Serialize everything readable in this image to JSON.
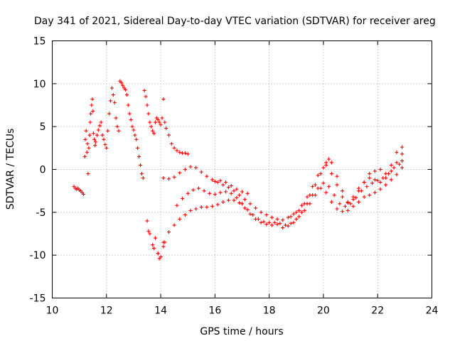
{
  "chart_data": {
    "type": "scatter",
    "title": "Day 341 of 2021, Sidereal Day-to-day VTEC variation (SDTVAR) for receiver areg",
    "xlabel": "GPS time / hours",
    "ylabel": "SDTVAR / TECUs",
    "xlim": [
      10,
      24
    ],
    "ylim": [
      -15,
      15
    ],
    "x_ticks": [
      "10",
      "12",
      "14",
      "16",
      "18",
      "20",
      "22",
      "24"
    ],
    "y_ticks": [
      "15",
      "10",
      "5",
      "0",
      "-5",
      "-10",
      "-15"
    ],
    "grid": true,
    "marker": "plus",
    "color": "#ff0000",
    "series": [
      {
        "name": "early scattered arcs",
        "points": [
          [
            10.8,
            -2.0
          ],
          [
            10.85,
            -2.2
          ],
          [
            10.9,
            -2.3
          ],
          [
            10.95,
            -2.2
          ],
          [
            11.0,
            -2.4
          ],
          [
            11.05,
            -2.5
          ],
          [
            11.1,
            -2.7
          ],
          [
            11.15,
            -2.9
          ],
          [
            11.2,
            1.5
          ],
          [
            11.22,
            3.5
          ],
          [
            11.25,
            4.5
          ],
          [
            11.28,
            2.0
          ],
          [
            11.3,
            3.0
          ],
          [
            11.32,
            -0.5
          ],
          [
            11.35,
            2.5
          ],
          [
            11.38,
            4.0
          ],
          [
            11.4,
            5.5
          ],
          [
            11.42,
            6.5
          ],
          [
            11.45,
            7.5
          ],
          [
            11.48,
            8.2
          ],
          [
            11.5,
            6.8
          ],
          [
            11.52,
            4.2
          ],
          [
            11.55,
            3.5
          ],
          [
            11.58,
            2.8
          ],
          [
            11.6,
            3.2
          ],
          [
            11.65,
            4.0
          ],
          [
            11.7,
            4.6
          ],
          [
            11.75,
            5.1
          ],
          [
            11.8,
            5.5
          ],
          [
            11.85,
            4.0
          ],
          [
            11.9,
            3.5
          ],
          [
            11.95,
            2.9
          ],
          [
            12.0,
            2.5
          ],
          [
            12.05,
            4.5
          ],
          [
            12.1,
            6.5
          ],
          [
            12.15,
            8.0
          ],
          [
            12.2,
            9.5
          ],
          [
            12.25,
            8.7
          ],
          [
            12.3,
            7.8
          ],
          [
            12.35,
            6.0
          ],
          [
            12.4,
            5.0
          ],
          [
            12.45,
            4.5
          ],
          [
            12.5,
            10.3
          ],
          [
            12.55,
            10.1
          ],
          [
            12.6,
            9.8
          ],
          [
            12.65,
            9.5
          ],
          [
            12.7,
            9.3
          ],
          [
            12.75,
            8.7
          ],
          [
            12.8,
            7.5
          ],
          [
            12.85,
            6.5
          ],
          [
            12.9,
            5.8
          ],
          [
            12.95,
            5.0
          ],
          [
            13.0,
            4.6
          ],
          [
            13.05,
            4.0
          ],
          [
            13.1,
            3.5
          ],
          [
            13.15,
            2.5
          ],
          [
            13.2,
            1.5
          ],
          [
            13.25,
            0.5
          ],
          [
            13.3,
            -0.5
          ],
          [
            13.35,
            -1.0
          ]
        ]
      },
      {
        "name": "midday arcs",
        "points": [
          [
            13.4,
            9.2
          ],
          [
            13.45,
            8.5
          ],
          [
            13.5,
            7.5
          ],
          [
            13.55,
            6.5
          ],
          [
            13.6,
            5.5
          ],
          [
            13.65,
            5.0
          ],
          [
            13.7,
            4.5
          ],
          [
            13.75,
            4.2
          ],
          [
            13.8,
            5.5
          ],
          [
            13.85,
            6.0
          ],
          [
            13.9,
            5.8
          ],
          [
            13.95,
            5.5
          ],
          [
            14.0,
            5.2
          ],
          [
            14.05,
            6.0
          ],
          [
            14.1,
            8.2
          ],
          [
            14.15,
            5.5
          ],
          [
            14.2,
            4.8
          ],
          [
            14.3,
            4.0
          ],
          [
            14.4,
            3.0
          ],
          [
            14.5,
            2.5
          ],
          [
            14.6,
            2.2
          ],
          [
            14.7,
            2.0
          ],
          [
            14.8,
            1.9
          ],
          [
            14.9,
            1.9
          ],
          [
            15.0,
            1.8
          ],
          [
            13.5,
            -6.0
          ],
          [
            13.55,
            -7.2
          ],
          [
            13.6,
            -7.5
          ],
          [
            13.7,
            -8.8
          ],
          [
            13.75,
            -9.2
          ],
          [
            13.8,
            -8.0
          ],
          [
            13.9,
            -9.8
          ],
          [
            13.95,
            -10.4
          ],
          [
            14.0,
            -10.2
          ],
          [
            14.1,
            -9.0
          ],
          [
            14.15,
            -8.5
          ]
        ]
      },
      {
        "name": "track A",
        "points": [
          [
            14.1,
            -1.0
          ],
          [
            14.3,
            -1.1
          ],
          [
            14.5,
            -0.9
          ],
          [
            14.7,
            -0.4
          ],
          [
            14.9,
            0.0
          ],
          [
            15.1,
            0.3
          ],
          [
            15.3,
            0.2
          ],
          [
            15.5,
            -0.3
          ],
          [
            15.7,
            -0.8
          ],
          [
            15.9,
            -1.2
          ],
          [
            16.1,
            -1.5
          ],
          [
            16.3,
            -1.8
          ],
          [
            16.5,
            -2.1
          ],
          [
            16.7,
            -2.5
          ],
          [
            16.9,
            -3.0
          ],
          [
            17.1,
            -3.5
          ],
          [
            17.3,
            -4.0
          ],
          [
            17.5,
            -4.5
          ],
          [
            17.7,
            -5.0
          ],
          [
            17.9,
            -5.3
          ],
          [
            18.1,
            -5.6
          ],
          [
            18.3,
            -5.8
          ],
          [
            18.5,
            -5.9
          ],
          [
            18.7,
            -5.6
          ],
          [
            18.9,
            -5.2
          ],
          [
            19.1,
            -4.8
          ],
          [
            19.3,
            -4.0
          ],
          [
            19.5,
            -3.0
          ],
          [
            19.7,
            -1.8
          ],
          [
            19.9,
            -0.5
          ],
          [
            20.1,
            0.8
          ],
          [
            20.2,
            1.2
          ],
          [
            20.3,
            0.8
          ],
          [
            20.5,
            -0.8
          ],
          [
            20.7,
            -2.5
          ],
          [
            20.9,
            -3.8
          ],
          [
            21.1,
            -3.5
          ],
          [
            21.3,
            -2.5
          ],
          [
            21.5,
            -1.5
          ],
          [
            21.7,
            -0.5
          ],
          [
            21.9,
            -0.2
          ],
          [
            22.1,
            0.0
          ],
          [
            22.3,
            -0.5
          ],
          [
            22.5,
            0.5
          ],
          [
            22.7,
            2.0
          ],
          [
            22.9,
            2.6
          ]
        ]
      },
      {
        "name": "track B",
        "points": [
          [
            14.6,
            -4.2
          ],
          [
            14.8,
            -3.4
          ],
          [
            15.0,
            -2.8
          ],
          [
            15.2,
            -2.4
          ],
          [
            15.4,
            -2.2
          ],
          [
            15.6,
            -2.5
          ],
          [
            15.8,
            -2.8
          ],
          [
            16.0,
            -2.9
          ],
          [
            16.2,
            -2.7
          ],
          [
            16.4,
            -2.6
          ],
          [
            16.6,
            -2.8
          ],
          [
            16.8,
            -3.3
          ],
          [
            17.0,
            -4.0
          ],
          [
            17.2,
            -4.7
          ],
          [
            17.4,
            -5.3
          ],
          [
            17.6,
            -5.8
          ],
          [
            17.8,
            -6.1
          ],
          [
            18.0,
            -6.2
          ],
          [
            18.2,
            -6.2
          ],
          [
            18.4,
            -6.3
          ],
          [
            18.6,
            -6.5
          ],
          [
            18.8,
            -6.3
          ],
          [
            19.0,
            -5.8
          ],
          [
            19.2,
            -5.0
          ],
          [
            19.4,
            -4.0
          ],
          [
            19.6,
            -3.0
          ],
          [
            19.8,
            -2.2
          ],
          [
            20.0,
            -1.6
          ],
          [
            20.2,
            -2.0
          ],
          [
            20.4,
            -3.0
          ],
          [
            20.6,
            -4.0
          ],
          [
            20.8,
            -4.3
          ],
          [
            21.0,
            -4.0
          ],
          [
            21.2,
            -3.3
          ],
          [
            21.4,
            -2.5
          ],
          [
            21.6,
            -2.0
          ],
          [
            21.8,
            -1.6
          ],
          [
            22.0,
            -1.3
          ],
          [
            22.2,
            -1.0
          ],
          [
            22.4,
            -0.5
          ],
          [
            22.6,
            0.2
          ],
          [
            22.8,
            0.6
          ],
          [
            22.9,
            1.0
          ]
        ]
      },
      {
        "name": "track C",
        "points": [
          [
            13.9,
            -9.8
          ],
          [
            14.1,
            -8.5
          ],
          [
            14.3,
            -7.3
          ],
          [
            14.5,
            -6.5
          ],
          [
            14.7,
            -5.8
          ],
          [
            14.9,
            -5.3
          ],
          [
            15.1,
            -4.8
          ],
          [
            15.3,
            -4.6
          ],
          [
            15.5,
            -4.4
          ],
          [
            15.7,
            -4.4
          ],
          [
            15.9,
            -4.3
          ],
          [
            16.1,
            -4.1
          ],
          [
            16.3,
            -3.8
          ],
          [
            16.5,
            -3.6
          ],
          [
            16.7,
            -3.6
          ],
          [
            16.9,
            -3.9
          ],
          [
            17.1,
            -4.5
          ],
          [
            17.3,
            -5.2
          ],
          [
            17.5,
            -5.8
          ],
          [
            17.7,
            -6.2
          ],
          [
            17.9,
            -6.4
          ],
          [
            18.1,
            -6.5
          ],
          [
            18.3,
            -6.4
          ],
          [
            18.5,
            -6.8
          ],
          [
            18.7,
            -6.6
          ],
          [
            18.9,
            -6.2
          ],
          [
            19.1,
            -5.5
          ],
          [
            19.3,
            -4.8
          ],
          [
            19.5,
            -4.0
          ],
          [
            19.7,
            -3.0
          ],
          [
            19.9,
            -2.2
          ],
          [
            20.1,
            -2.7
          ],
          [
            20.3,
            -3.8
          ],
          [
            20.5,
            -4.6
          ],
          [
            20.7,
            -4.9
          ],
          [
            20.9,
            -4.8
          ],
          [
            21.1,
            -4.3
          ],
          [
            21.3,
            -3.8
          ],
          [
            21.5,
            -3.2
          ],
          [
            21.7,
            -3.0
          ],
          [
            21.9,
            -2.7
          ],
          [
            22.1,
            -2.3
          ],
          [
            22.3,
            -1.8
          ],
          [
            22.5,
            -1.2
          ],
          [
            22.7,
            -0.6
          ],
          [
            22.9,
            0.2
          ]
        ]
      },
      {
        "name": "track D",
        "points": [
          [
            16.0,
            -1.4
          ],
          [
            16.2,
            -1.3
          ],
          [
            16.4,
            -1.5
          ],
          [
            16.6,
            -1.9
          ],
          [
            16.8,
            -2.3
          ],
          [
            17.0,
            -2.6
          ],
          [
            17.2,
            -2.8
          ],
          [
            18.8,
            -5.5
          ],
          [
            19.0,
            -5.0
          ],
          [
            19.2,
            -4.2
          ],
          [
            19.4,
            -3.2
          ],
          [
            19.6,
            -2.0
          ],
          [
            19.8,
            -0.7
          ],
          [
            20.0,
            0.2
          ],
          [
            20.1,
            0.5
          ],
          [
            20.3,
            -0.5
          ],
          [
            20.5,
            -1.8
          ],
          [
            20.7,
            -3.2
          ],
          [
            20.9,
            -3.9
          ],
          [
            21.1,
            -3.2
          ],
          [
            21.3,
            -2.2
          ],
          [
            21.5,
            -1.5
          ],
          [
            21.7,
            -1.0
          ],
          [
            21.9,
            -1.2
          ],
          [
            22.1,
            -1.5
          ],
          [
            22.3,
            -1.0
          ],
          [
            22.5,
            -0.2
          ],
          [
            22.7,
            0.8
          ],
          [
            22.9,
            1.8
          ]
        ]
      }
    ]
  }
}
